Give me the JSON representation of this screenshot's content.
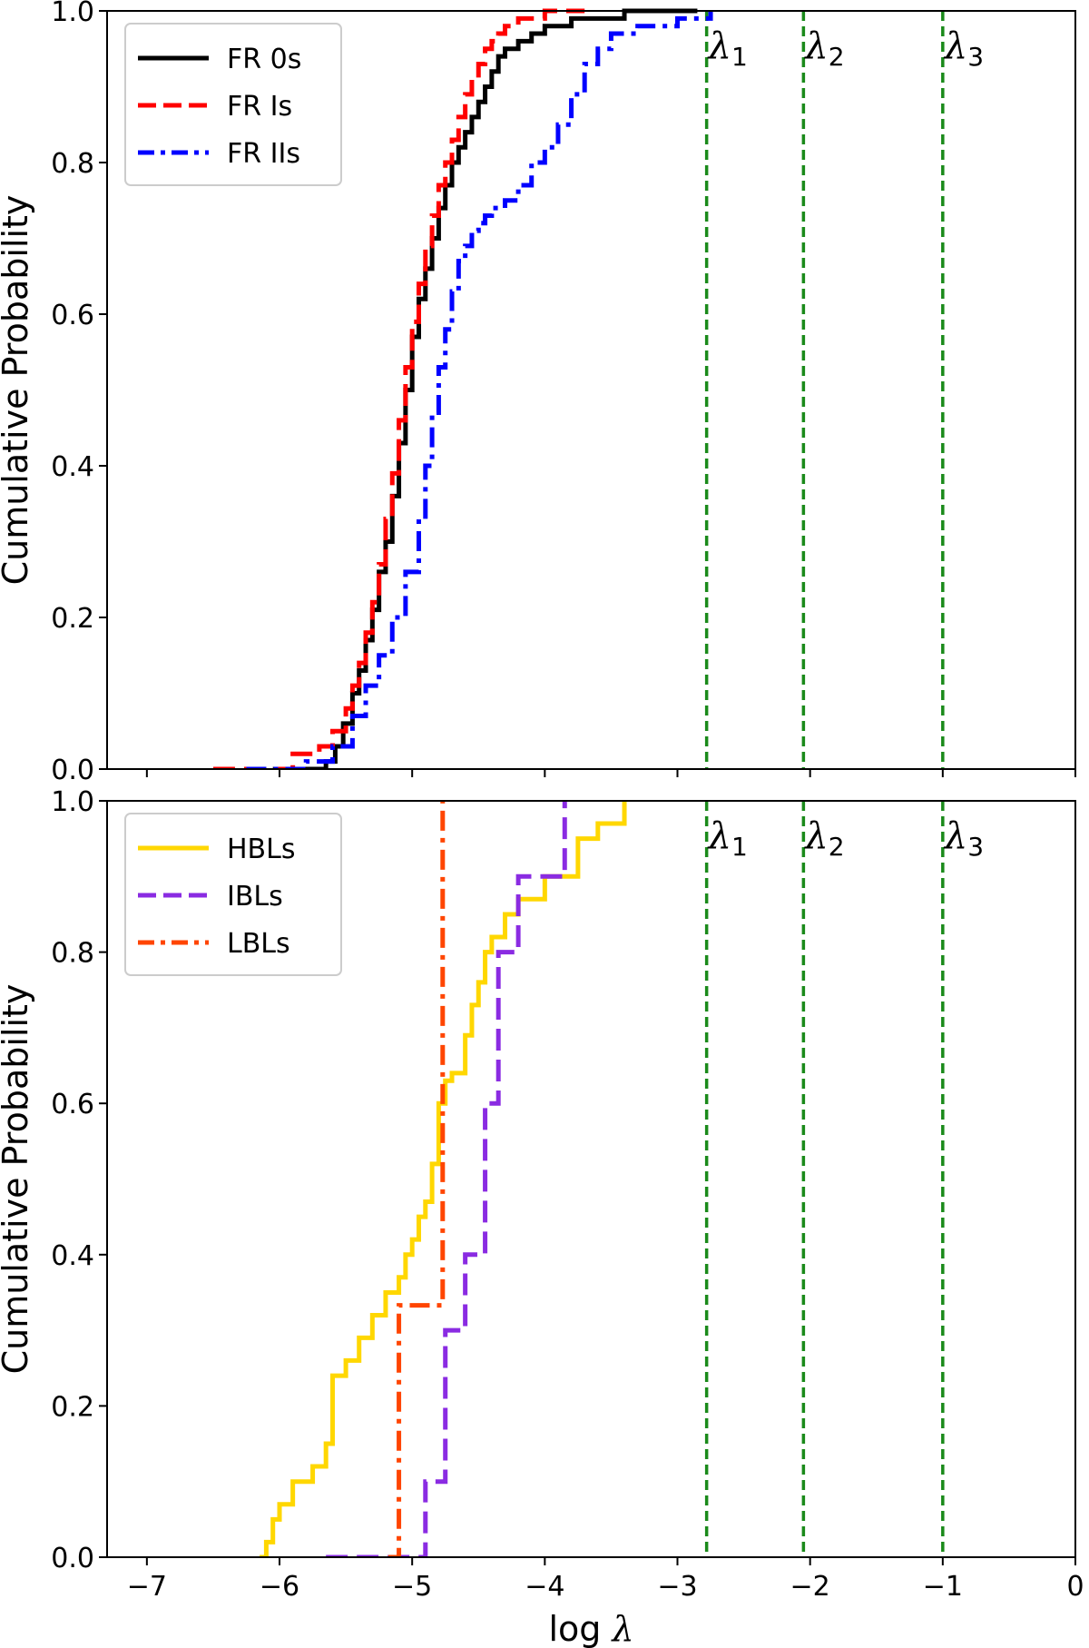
{
  "chart_data": [
    {
      "type": "line",
      "step": true,
      "xlim": [
        -7.3,
        0
      ],
      "ylim": [
        0,
        1.0
      ],
      "xticks": [
        -7,
        -6,
        -5,
        -4,
        -3,
        -2,
        -1,
        0
      ],
      "yticks": [
        0.0,
        0.2,
        0.4,
        0.6,
        0.8,
        1.0
      ],
      "xtick_labels_shown": false,
      "ylabel": "Cumulative Probability",
      "legend_position": "top-left",
      "vlines": [
        {
          "x": -2.78,
          "label": "λ",
          "sub": "1",
          "color": "#1a8a1a"
        },
        {
          "x": -2.05,
          "label": "λ",
          "sub": "2",
          "color": "#1a8a1a"
        },
        {
          "x": -1.0,
          "label": "λ",
          "sub": "3",
          "color": "#1a8a1a"
        }
      ],
      "series": [
        {
          "name": "FR 0s",
          "color": "#000000",
          "dash": "solid",
          "x": [
            -6.05,
            -5.65,
            -5.58,
            -5.52,
            -5.45,
            -5.4,
            -5.35,
            -5.3,
            -5.25,
            -5.2,
            -5.15,
            -5.1,
            -5.05,
            -5.0,
            -4.95,
            -4.9,
            -4.85,
            -4.8,
            -4.75,
            -4.7,
            -4.65,
            -4.6,
            -4.55,
            -4.5,
            -4.45,
            -4.4,
            -4.35,
            -4.3,
            -4.2,
            -4.1,
            -4.0,
            -3.9,
            -3.8,
            -3.6,
            -3.4,
            -3.0,
            -2.85
          ],
          "y": [
            0.0,
            0.01,
            0.03,
            0.06,
            0.1,
            0.13,
            0.17,
            0.21,
            0.26,
            0.3,
            0.36,
            0.43,
            0.5,
            0.57,
            0.62,
            0.66,
            0.7,
            0.74,
            0.77,
            0.8,
            0.82,
            0.84,
            0.86,
            0.88,
            0.9,
            0.92,
            0.94,
            0.95,
            0.96,
            0.97,
            0.98,
            0.98,
            0.99,
            0.99,
            1.0,
            1.0,
            1.0
          ]
        },
        {
          "name": "FR Is",
          "color": "#ff0000",
          "dash": "dashed",
          "x": [
            -6.5,
            -5.9,
            -5.7,
            -5.6,
            -5.5,
            -5.45,
            -5.4,
            -5.35,
            -5.3,
            -5.25,
            -5.2,
            -5.15,
            -5.1,
            -5.05,
            -5.0,
            -4.95,
            -4.9,
            -4.85,
            -4.8,
            -4.75,
            -4.7,
            -4.65,
            -4.6,
            -4.55,
            -4.5,
            -4.45,
            -4.4,
            -4.35,
            -4.3,
            -4.2,
            -4.1,
            -4.0,
            -3.9,
            -3.7
          ],
          "y": [
            0.0,
            0.02,
            0.03,
            0.05,
            0.08,
            0.11,
            0.14,
            0.18,
            0.22,
            0.27,
            0.33,
            0.39,
            0.46,
            0.53,
            0.59,
            0.64,
            0.69,
            0.73,
            0.77,
            0.8,
            0.83,
            0.86,
            0.89,
            0.91,
            0.93,
            0.95,
            0.96,
            0.97,
            0.98,
            0.99,
            0.99,
            1.0,
            1.0,
            1.0
          ]
        },
        {
          "name": "FR IIs",
          "color": "#0000ff",
          "dash": "dashdot",
          "x": [
            -6.25,
            -5.8,
            -5.6,
            -5.45,
            -5.35,
            -5.25,
            -5.15,
            -5.05,
            -4.95,
            -4.9,
            -4.85,
            -4.8,
            -4.75,
            -4.7,
            -4.65,
            -4.6,
            -4.55,
            -4.5,
            -4.45,
            -4.4,
            -4.3,
            -4.2,
            -4.1,
            -4.0,
            -3.9,
            -3.8,
            -3.7,
            -3.6,
            -3.5,
            -3.3,
            -3.0,
            -2.75
          ],
          "y": [
            0.0,
            0.01,
            0.03,
            0.07,
            0.11,
            0.15,
            0.2,
            0.26,
            0.33,
            0.4,
            0.47,
            0.53,
            0.58,
            0.63,
            0.67,
            0.69,
            0.71,
            0.72,
            0.73,
            0.74,
            0.75,
            0.77,
            0.8,
            0.82,
            0.85,
            0.89,
            0.93,
            0.95,
            0.97,
            0.98,
            0.99,
            1.0
          ]
        }
      ]
    },
    {
      "type": "line",
      "step": true,
      "xlim": [
        -7.3,
        0
      ],
      "ylim": [
        0,
        1.0
      ],
      "xticks": [
        -7,
        -6,
        -5,
        -4,
        -3,
        -2,
        -1,
        0
      ],
      "xtick_labels": [
        "−7",
        "−6",
        "−5",
        "−4",
        "−3",
        "−2",
        "−1",
        "0"
      ],
      "yticks": [
        0.0,
        0.2,
        0.4,
        0.6,
        0.8,
        1.0
      ],
      "xlabel": "log",
      "xlabel_symbol": "λ",
      "ylabel": "Cumulative Probability",
      "legend_position": "top-left",
      "vlines": [
        {
          "x": -2.78,
          "label": "λ",
          "sub": "1",
          "color": "#1a8a1a"
        },
        {
          "x": -2.05,
          "label": "λ",
          "sub": "2",
          "color": "#1a8a1a"
        },
        {
          "x": -1.0,
          "label": "λ",
          "sub": "3",
          "color": "#1a8a1a"
        }
      ],
      "series": [
        {
          "name": "HBLs",
          "color": "#ffd700",
          "dash": "solid",
          "x": [
            -6.15,
            -6.1,
            -6.05,
            -6.0,
            -5.9,
            -5.75,
            -5.65,
            -5.6,
            -5.5,
            -5.4,
            -5.3,
            -5.2,
            -5.1,
            -5.05,
            -5.0,
            -4.95,
            -4.9,
            -4.85,
            -4.8,
            -4.75,
            -4.7,
            -4.6,
            -4.55,
            -4.5,
            -4.45,
            -4.4,
            -4.3,
            -4.2,
            -4.0,
            -3.75,
            -3.6,
            -3.4
          ],
          "y": [
            0.0,
            0.02,
            0.05,
            0.07,
            0.1,
            0.12,
            0.15,
            0.24,
            0.26,
            0.29,
            0.32,
            0.35,
            0.37,
            0.4,
            0.42,
            0.45,
            0.47,
            0.52,
            0.6,
            0.63,
            0.64,
            0.69,
            0.73,
            0.76,
            0.8,
            0.82,
            0.85,
            0.87,
            0.9,
            0.95,
            0.97,
            1.0
          ]
        },
        {
          "name": "IBLs",
          "color": "#8a2be2",
          "dash": "dashed",
          "x": [
            -5.65,
            -4.9,
            -4.75,
            -4.6,
            -4.45,
            -4.35,
            -4.2,
            -4.0,
            -3.85
          ],
          "y": [
            0.0,
            0.1,
            0.3,
            0.4,
            0.6,
            0.8,
            0.9,
            0.9,
            1.0
          ]
        },
        {
          "name": "LBLs",
          "color": "#ff4500",
          "dash": "dashdot",
          "x": [
            -5.18,
            -5.1,
            -4.77
          ],
          "y": [
            0.0,
            0.333,
            0.667
          ]
        }
      ]
    }
  ]
}
